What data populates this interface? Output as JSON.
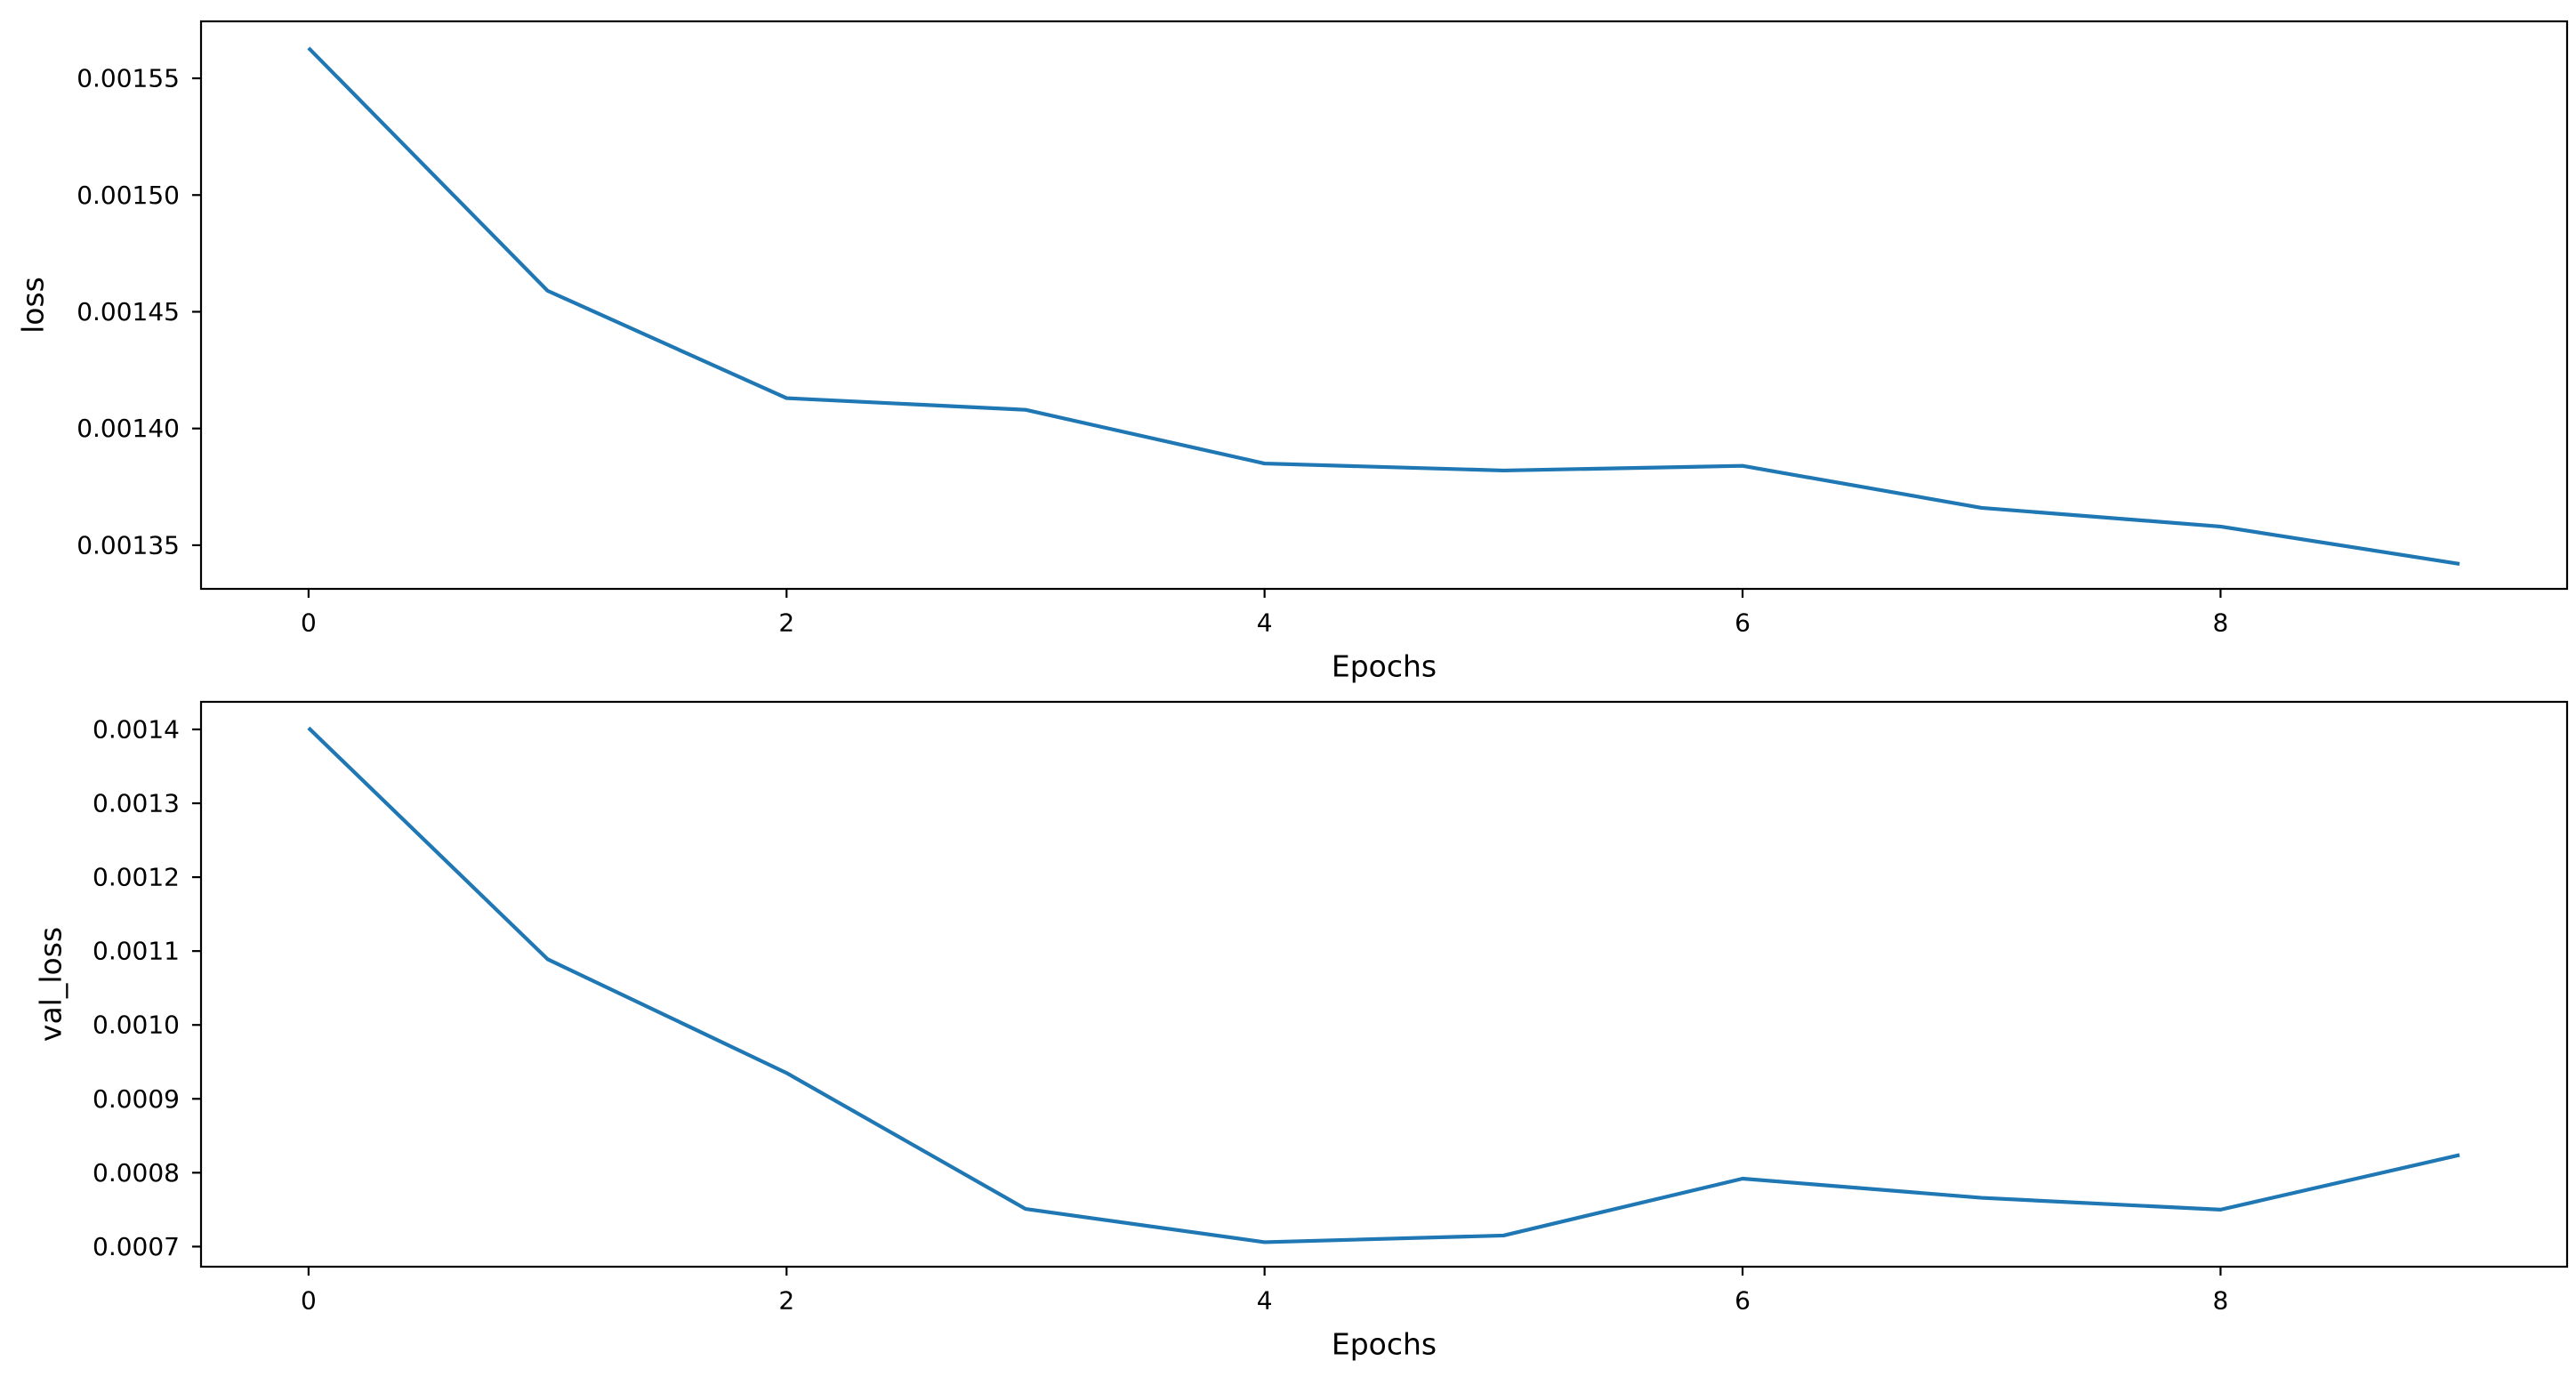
{
  "figure": {
    "background": "#ffffff",
    "num_subplots": 2
  },
  "chart_data": [
    {
      "type": "line",
      "title": "",
      "xlabel": "Epochs",
      "ylabel": "loss",
      "x": [
        0,
        1,
        2,
        3,
        4,
        5,
        6,
        7,
        8,
        9
      ],
      "values": [
        0.001563,
        0.001459,
        0.001413,
        0.001408,
        0.001385,
        0.001382,
        0.001384,
        0.001366,
        0.001358,
        0.001342
      ],
      "xlim": [
        -0.45,
        9.45
      ],
      "ylim": [
        0.0013313,
        0.0015744
      ],
      "xticks": [
        0,
        2,
        4,
        6,
        8
      ],
      "xtick_labels": [
        "0",
        "2",
        "4",
        "6",
        "8"
      ],
      "yticks": [
        0.00135,
        0.0014,
        0.00145,
        0.0015,
        0.00155
      ],
      "ytick_labels": [
        "0.00135",
        "0.00140",
        "0.00145",
        "0.00150",
        "0.00155"
      ],
      "line_color": "#1f77b4",
      "grid": false,
      "legend": null
    },
    {
      "type": "line",
      "title": "",
      "xlabel": "Epochs",
      "ylabel": "val_loss",
      "x": [
        0,
        1,
        2,
        3,
        4,
        5,
        6,
        7,
        8,
        9
      ],
      "values": [
        0.001402,
        0.001089,
        0.000935,
        0.000751,
        0.000706,
        0.000715,
        0.000792,
        0.000766,
        0.00075,
        0.000824
      ],
      "xlim": [
        -0.45,
        9.45
      ],
      "ylim": [
        0.0006728,
        0.0014373
      ],
      "xticks": [
        0,
        2,
        4,
        6,
        8
      ],
      "xtick_labels": [
        "0",
        "2",
        "4",
        "6",
        "8"
      ],
      "yticks": [
        0.0007,
        0.0008,
        0.0009,
        0.001,
        0.0011,
        0.0012,
        0.0013,
        0.0014
      ],
      "ytick_labels": [
        "0.0007",
        "0.0008",
        "0.0009",
        "0.0010",
        "0.0011",
        "0.0012",
        "0.0013",
        "0.0014"
      ],
      "line_color": "#1f77b4",
      "grid": false,
      "legend": null
    }
  ]
}
